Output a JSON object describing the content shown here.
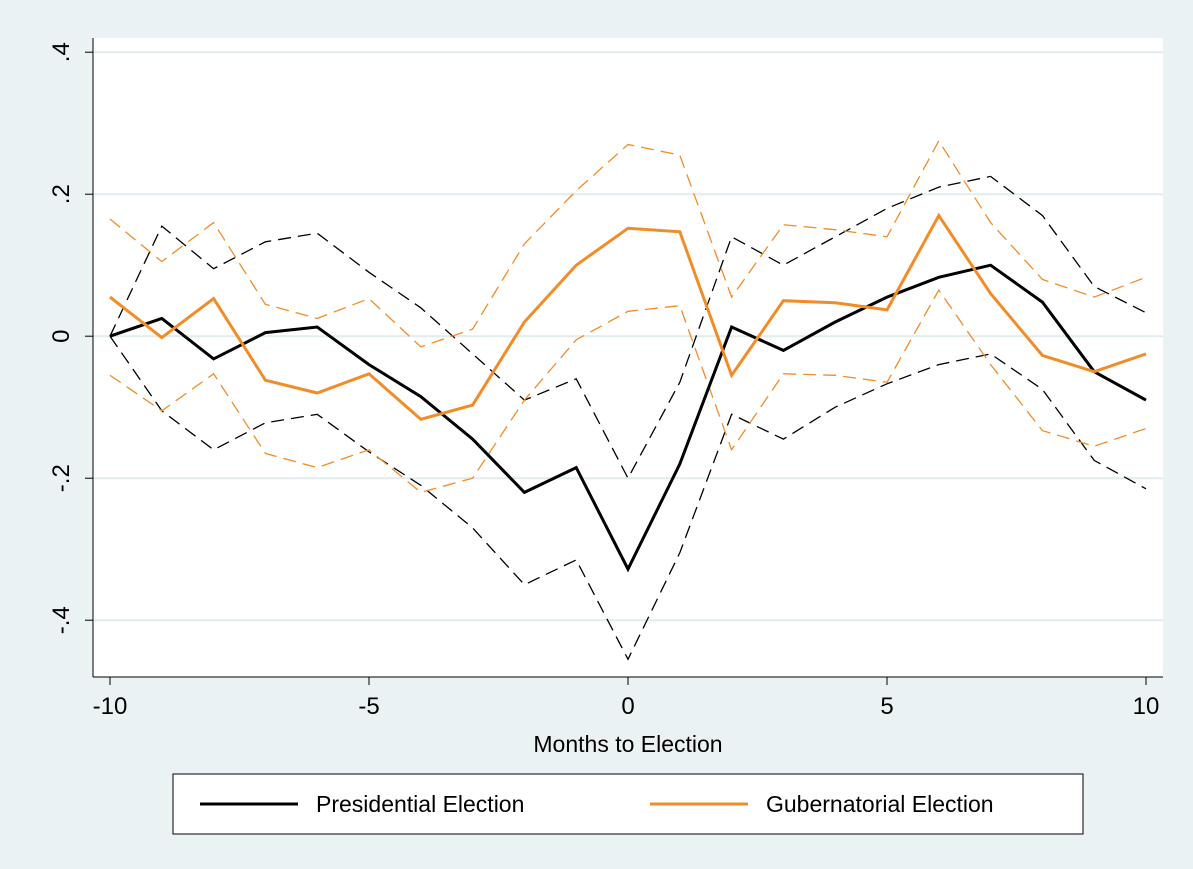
{
  "chart_data": {
    "type": "line",
    "title": "",
    "xlabel": "Months to Election",
    "ylabel": "",
    "xlim": [
      -10,
      10
    ],
    "ylim": [
      -0.48,
      0.42
    ],
    "xticks": [
      -10,
      -5,
      0,
      5,
      10
    ],
    "xtick_labels": [
      "-10",
      "-5",
      "0",
      "5",
      "10"
    ],
    "yticks": [
      -0.4,
      -0.2,
      0,
      0.2,
      0.4
    ],
    "ytick_labels": [
      "-.4",
      "-.2",
      "0",
      ".2",
      ".4"
    ],
    "grid": true,
    "legend_position": "bottom",
    "x": [
      -10,
      -9,
      -8,
      -7,
      -6,
      -5,
      -4,
      -3,
      -2,
      -1,
      0,
      1,
      2,
      3,
      4,
      5,
      6,
      7,
      8,
      9,
      10
    ],
    "series": [
      {
        "name": "Presidential Election",
        "color": "#000000",
        "style": "solid",
        "in_legend": true,
        "values": [
          0.0,
          0.025,
          -0.032,
          0.005,
          0.013,
          -0.04,
          -0.085,
          -0.145,
          -0.22,
          -0.185,
          -0.328,
          -0.18,
          0.013,
          -0.02,
          0.02,
          0.055,
          0.083,
          0.1,
          0.048,
          -0.05,
          -0.09
        ]
      },
      {
        "name": "Gubernatorial Election",
        "color": "#F28C28",
        "style": "solid",
        "in_legend": true,
        "values": [
          0.055,
          -0.002,
          0.053,
          -0.062,
          -0.08,
          -0.053,
          -0.117,
          -0.097,
          0.02,
          0.1,
          0.152,
          0.147,
          -0.055,
          0.05,
          0.047,
          0.037,
          0.17,
          0.06,
          -0.027,
          -0.05,
          -0.025
        ]
      },
      {
        "name": "",
        "color": "#000000",
        "style": "dashed",
        "in_legend": false,
        "values": [
          0.0,
          0.155,
          0.095,
          0.133,
          0.145,
          0.09,
          0.04,
          -0.025,
          -0.09,
          -0.06,
          -0.2,
          -0.065,
          0.14,
          0.1,
          0.14,
          0.18,
          0.21,
          0.225,
          0.17,
          0.07,
          0.033
        ]
      },
      {
        "name": "",
        "color": "#000000",
        "style": "dashed",
        "in_legend": false,
        "values": [
          0.0,
          -0.105,
          -0.16,
          -0.122,
          -0.11,
          -0.163,
          -0.21,
          -0.27,
          -0.35,
          -0.315,
          -0.455,
          -0.305,
          -0.11,
          -0.145,
          -0.1,
          -0.067,
          -0.04,
          -0.025,
          -0.075,
          -0.175,
          -0.215
        ]
      },
      {
        "name": "",
        "color": "#F28C28",
        "style": "dashed",
        "in_legend": false,
        "values": [
          0.165,
          0.105,
          0.16,
          0.045,
          0.025,
          0.053,
          -0.015,
          0.01,
          0.13,
          0.205,
          0.27,
          0.255,
          0.055,
          0.157,
          0.15,
          0.14,
          0.275,
          0.16,
          0.08,
          0.055,
          0.083
        ]
      },
      {
        "name": "",
        "color": "#F28C28",
        "style": "dashed",
        "in_legend": false,
        "values": [
          -0.055,
          -0.105,
          -0.053,
          -0.165,
          -0.185,
          -0.16,
          -0.22,
          -0.2,
          -0.09,
          -0.005,
          0.035,
          0.043,
          -0.16,
          -0.053,
          -0.055,
          -0.065,
          0.065,
          -0.04,
          -0.133,
          -0.155,
          -0.13
        ]
      }
    ]
  }
}
